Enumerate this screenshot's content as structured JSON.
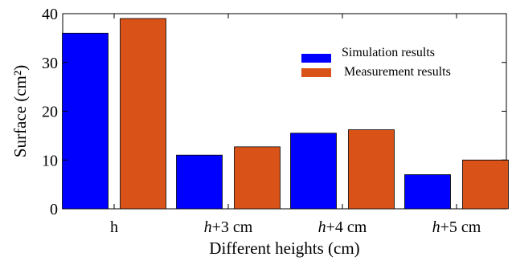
{
  "chart_data": {
    "type": "bar",
    "categories": [
      {
        "label": "h",
        "italic": false,
        "suffix": ""
      },
      {
        "label": "h",
        "italic": true,
        "suffix": "+3 cm"
      },
      {
        "label": "h",
        "italic": true,
        "suffix": "+4 cm"
      },
      {
        "label": "h",
        "italic": true,
        "suffix": "+5 cm"
      }
    ],
    "series": [
      {
        "name": "Simulation results",
        "color": "#0000ff",
        "values": [
          36,
          11,
          15.5,
          7
        ]
      },
      {
        "name": "Measurement results",
        "color": "#d95319",
        "values": [
          39,
          12.7,
          16.2,
          10
        ]
      }
    ],
    "xlabel": "Different heights (cm)",
    "ylabel": "Surface (cm²)",
    "ylim": [
      0,
      40
    ],
    "yticks": [
      0,
      10,
      20,
      30,
      40
    ],
    "grid": false,
    "legend_position": "top-right"
  }
}
